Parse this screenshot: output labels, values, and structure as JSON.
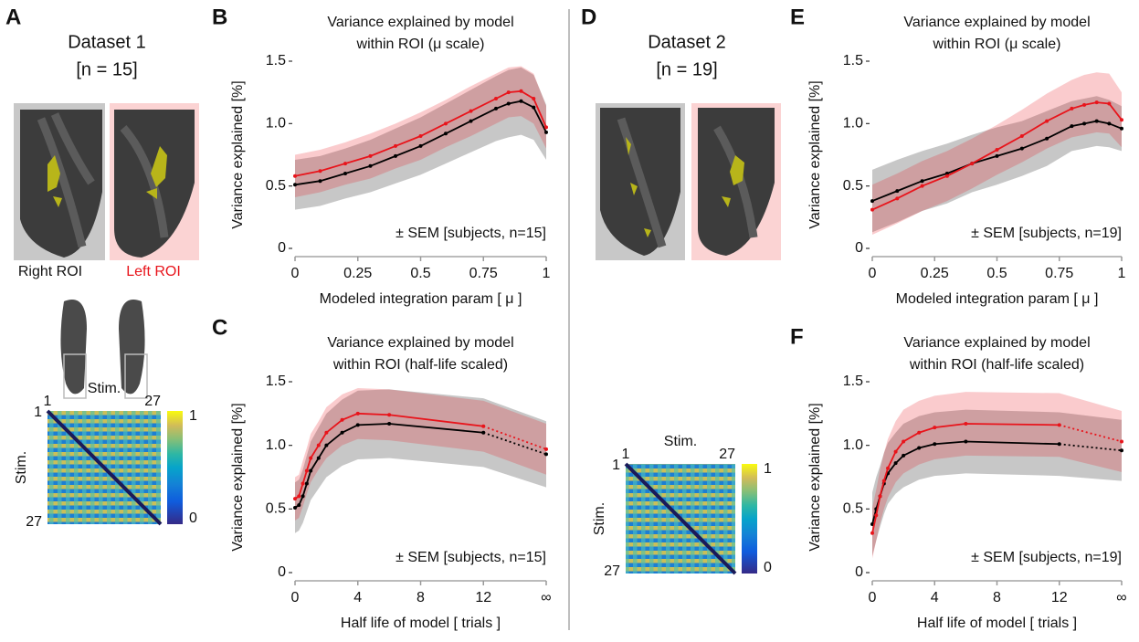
{
  "panels": [
    "A",
    "B",
    "C",
    "D",
    "E",
    "F"
  ],
  "datasets": [
    {
      "title": "Dataset 1",
      "n": "[n = 15]"
    },
    {
      "title": "Dataset 2",
      "n": "[n = 19]"
    }
  ],
  "matrices": [
    {
      "x_label": "Stim.",
      "y_label": "Stim.",
      "xticks": [
        1,
        27
      ],
      "yticks": [
        1,
        27
      ],
      "colorbar_ticks": [
        1,
        0
      ]
    },
    {
      "x_label": "Stim.",
      "y_label": "Stim.",
      "xticks": [
        1,
        27
      ],
      "yticks": [
        1,
        27
      ],
      "colorbar_ticks": [
        1,
        0
      ]
    }
  ],
  "chart_data": [
    {
      "type": "line",
      "title": [
        "Variance explained by model",
        "within ROI (μ scale)"
      ],
      "x_label": "Modeled integration param [ μ ]",
      "y_label": "Variance explained [%]",
      "annotation": "± SEM [subjects, n=15]",
      "x": [
        0,
        0.1,
        0.2,
        0.3,
        0.4,
        0.5,
        0.6,
        0.7,
        0.8,
        0.85,
        0.9,
        0.95,
        1
      ],
      "xlim": [
        0,
        1
      ],
      "xticks": [
        0,
        0.25,
        0.5,
        0.75,
        1
      ],
      "ylim": [
        0,
        1.5
      ],
      "yticks": [
        0,
        0.5,
        {
          "value": 1,
          "label": "1.0"
        },
        1.5
      ],
      "series": [
        {
          "name": "Right ROI",
          "color": "#000000",
          "values": [
            0.51,
            0.54,
            0.6,
            0.66,
            0.74,
            0.82,
            0.92,
            1.02,
            1.12,
            1.16,
            1.18,
            1.13,
            0.93
          ],
          "errors": [
            0.2,
            0.2,
            0.2,
            0.21,
            0.22,
            0.23,
            0.24,
            0.25,
            0.26,
            0.27,
            0.27,
            0.26,
            0.22
          ]
        },
        {
          "name": "Left ROI",
          "color": "#e8141b",
          "values": [
            0.58,
            0.62,
            0.68,
            0.74,
            0.82,
            0.9,
            1,
            1.1,
            1.2,
            1.25,
            1.26,
            1.2,
            0.97
          ],
          "errors": [
            0.17,
            0.17,
            0.17,
            0.18,
            0.18,
            0.19,
            0.19,
            0.2,
            0.2,
            0.2,
            0.2,
            0.2,
            0.17
          ]
        }
      ]
    },
    {
      "type": "line",
      "title": [
        "Variance explained by model",
        "within ROI (half-life scaled)"
      ],
      "x_label": "Half life of model [ trials ]",
      "y_label": "Variance explained [%]",
      "annotation": "± SEM [subjects, n=15]",
      "extrapolated_last": true,
      "x": [
        0,
        0.25,
        0.5,
        0.75,
        1,
        1.5,
        2,
        3,
        4,
        6,
        12,
        16
      ],
      "xlim": [
        0,
        16
      ],
      "xticks": [
        0,
        4,
        8,
        12,
        {
          "value": 16,
          "label": "∞"
        }
      ],
      "ylim": [
        0,
        1.5
      ],
      "yticks": [
        0,
        0.5,
        {
          "value": 1,
          "label": "1.0"
        },
        1.5
      ],
      "series": [
        {
          "color": "#000000",
          "values": [
            0.51,
            0.53,
            0.6,
            0.7,
            0.8,
            0.9,
            1,
            1.1,
            1.16,
            1.17,
            1.1,
            0.93
          ],
          "errors": [
            0.2,
            0.2,
            0.21,
            0.22,
            0.23,
            0.24,
            0.25,
            0.26,
            0.27,
            0.27,
            0.27,
            0.26
          ]
        },
        {
          "color": "#e8141b",
          "values": [
            0.58,
            0.6,
            0.7,
            0.8,
            0.9,
            1,
            1.1,
            1.2,
            1.25,
            1.24,
            1.15,
            0.97
          ],
          "errors": [
            0.17,
            0.17,
            0.18,
            0.18,
            0.19,
            0.19,
            0.2,
            0.2,
            0.2,
            0.2,
            0.2,
            0.2
          ]
        }
      ]
    },
    {
      "type": "line",
      "title": [
        "Variance explained by model",
        "within ROI (μ scale)"
      ],
      "x_label": "Modeled integration param [ μ ]",
      "y_label": "Variance explained [%]",
      "annotation": "± SEM [subjects, n=19]",
      "x": [
        0,
        0.1,
        0.2,
        0.3,
        0.4,
        0.5,
        0.6,
        0.7,
        0.8,
        0.85,
        0.9,
        0.95,
        1
      ],
      "xlim": [
        0,
        1
      ],
      "xticks": [
        0,
        0.25,
        0.5,
        0.75,
        1
      ],
      "ylim": [
        0,
        1.5
      ],
      "yticks": [
        0,
        0.5,
        {
          "value": 1,
          "label": "1.0"
        },
        1.5
      ],
      "series": [
        {
          "color": "#000000",
          "values": [
            0.38,
            0.46,
            0.54,
            0.6,
            0.68,
            0.74,
            0.8,
            0.88,
            0.98,
            1,
            1.02,
            1,
            0.96
          ],
          "errors": [
            0.25,
            0.25,
            0.24,
            0.24,
            0.23,
            0.23,
            0.22,
            0.22,
            0.2,
            0.2,
            0.2,
            0.19,
            0.18
          ]
        },
        {
          "color": "#e8141b",
          "values": [
            0.31,
            0.4,
            0.5,
            0.58,
            0.68,
            0.79,
            0.9,
            1.02,
            1.12,
            1.15,
            1.17,
            1.16,
            1.03
          ],
          "errors": [
            0.2,
            0.2,
            0.2,
            0.2,
            0.2,
            0.2,
            0.21,
            0.22,
            0.23,
            0.24,
            0.24,
            0.24,
            0.22
          ]
        }
      ]
    },
    {
      "type": "line",
      "title": [
        "Variance explained by model",
        "within ROI (half-life scaled)"
      ],
      "x_label": "Half life of model [ trials ]",
      "y_label": "Variance explained [%]",
      "annotation": "± SEM [subjects, n=19]",
      "extrapolated_last": true,
      "x": [
        0,
        0.25,
        0.5,
        0.75,
        1,
        1.5,
        2,
        3,
        4,
        6,
        12,
        16
      ],
      "xlim": [
        0,
        16
      ],
      "xticks": [
        0,
        4,
        8,
        12,
        {
          "value": 16,
          "label": "∞"
        }
      ],
      "ylim": [
        0,
        1.5
      ],
      "yticks": [
        0,
        0.5,
        {
          "value": 1,
          "label": "1.0"
        },
        1.5
      ],
      "series": [
        {
          "color": "#000000",
          "values": [
            0.38,
            0.5,
            0.6,
            0.7,
            0.78,
            0.86,
            0.92,
            0.98,
            1.01,
            1.03,
            1.01,
            0.96
          ],
          "errors": [
            0.25,
            0.25,
            0.24,
            0.24,
            0.24,
            0.24,
            0.25,
            0.25,
            0.25,
            0.25,
            0.25,
            0.24
          ]
        },
        {
          "color": "#e8141b",
          "values": [
            0.31,
            0.45,
            0.6,
            0.72,
            0.82,
            0.95,
            1.03,
            1.1,
            1.14,
            1.17,
            1.16,
            1.03
          ],
          "errors": [
            0.2,
            0.2,
            0.21,
            0.22,
            0.23,
            0.24,
            0.25,
            0.25,
            0.25,
            0.25,
            0.25,
            0.24
          ]
        }
      ]
    }
  ]
}
